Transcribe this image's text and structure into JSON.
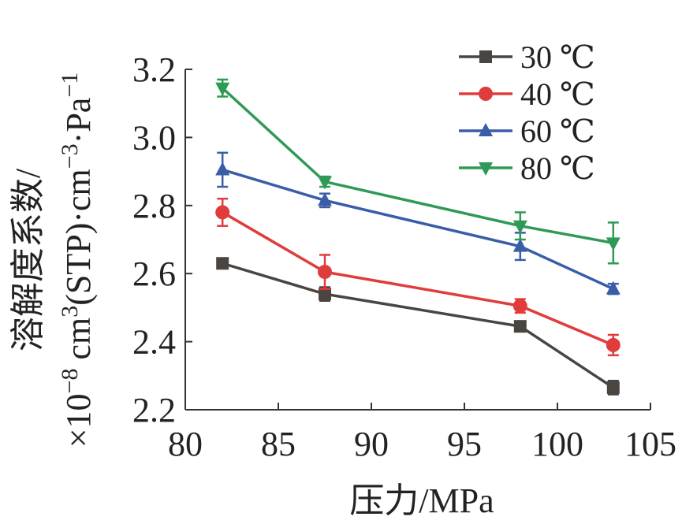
{
  "chart_data": {
    "type": "line",
    "xlabel": "压力/MPa",
    "ylabel_line1": "溶解度系数/",
    "ylabel_line2_parts": [
      "×10",
      "−8",
      " cm",
      "3",
      "(STP)·cm",
      "−3",
      "·Pa",
      "−1"
    ],
    "xlim": [
      80,
      105
    ],
    "ylim": [
      2.2,
      3.2
    ],
    "xticks": [
      80,
      85,
      90,
      95,
      100,
      105
    ],
    "yticks": [
      2.2,
      2.4,
      2.6,
      2.8,
      3.0,
      3.2
    ],
    "xtick_labels": [
      "80",
      "85",
      "90",
      "95",
      "100",
      "105"
    ],
    "ytick_labels": [
      "2.2",
      "2.4",
      "2.6",
      "2.8",
      "3.0",
      "3.2"
    ],
    "x": [
      82,
      87.5,
      98,
      103
    ],
    "grid": false,
    "legend_position": "top-right",
    "series": [
      {
        "name": "30 ℃",
        "color": "#4a4540",
        "marker": "square",
        "values": [
          2.63,
          2.54,
          2.445,
          2.265
        ],
        "errors": [
          0.01,
          0.02,
          0.01,
          0.02
        ]
      },
      {
        "name": "40 ℃",
        "color": "#e03c3c",
        "marker": "circle",
        "values": [
          2.78,
          2.605,
          2.505,
          2.39
        ],
        "errors": [
          0.04,
          0.05,
          0.02,
          0.03
        ]
      },
      {
        "name": "60 ℃",
        "color": "#3a5da8",
        "marker": "triangle-up",
        "values": [
          2.905,
          2.815,
          2.68,
          2.555
        ],
        "errors": [
          0.05,
          0.02,
          0.04,
          0.015
        ]
      },
      {
        "name": "80 ℃",
        "color": "#2e9a55",
        "marker": "triangle-down",
        "values": [
          3.145,
          2.87,
          2.74,
          2.69
        ],
        "errors": [
          0.025,
          0.015,
          0.04,
          0.06
        ]
      }
    ]
  }
}
